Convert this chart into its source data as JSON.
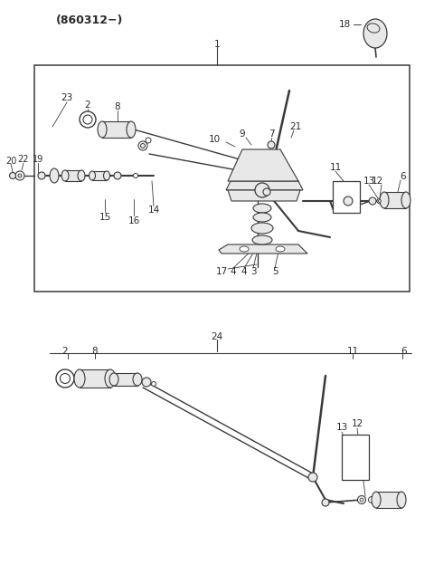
{
  "title": "(860312−)",
  "bg_color": "#ffffff",
  "lc": "#3a3a3a",
  "tc": "#2a2a2a",
  "fig_width": 4.8,
  "fig_height": 6.24,
  "dpi": 100
}
